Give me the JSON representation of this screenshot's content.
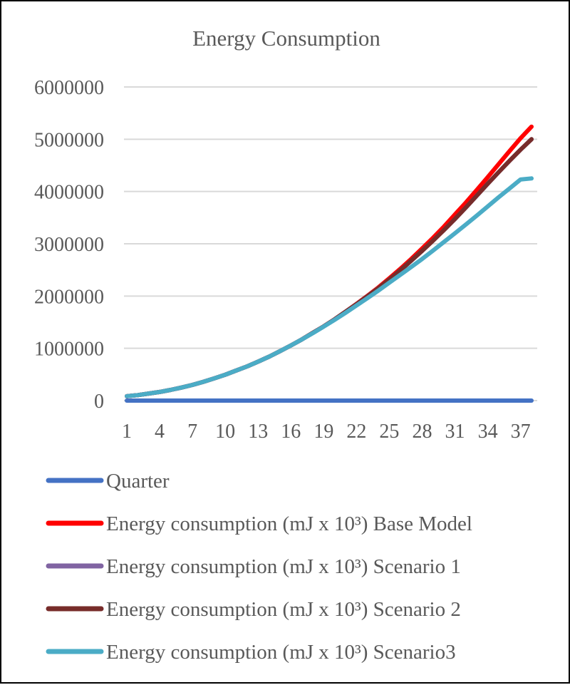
{
  "chart_data": {
    "type": "line",
    "title": "Energy Consumption",
    "xlabel": "",
    "ylabel": "",
    "ylim": [
      0,
      6000000
    ],
    "yticks": [
      0,
      1000000,
      2000000,
      3000000,
      4000000,
      5000000,
      6000000
    ],
    "ytick_labels": [
      "0",
      "1000000",
      "2000000",
      "3000000",
      "4000000",
      "5000000",
      "6000000"
    ],
    "x": [
      1,
      2,
      3,
      4,
      5,
      6,
      7,
      8,
      9,
      10,
      11,
      12,
      13,
      14,
      15,
      16,
      17,
      18,
      19,
      20,
      21,
      22,
      23,
      24,
      25,
      26,
      27,
      28,
      29,
      30,
      31,
      32,
      33,
      34,
      35,
      36,
      37,
      38
    ],
    "xtick_labels": [
      "1",
      "4",
      "7",
      "10",
      "13",
      "16",
      "19",
      "22",
      "25",
      "28",
      "31",
      "34",
      "37"
    ],
    "grid": true,
    "legend": "bottom",
    "series": [
      {
        "name": "Quarter",
        "color": "#4472c4",
        "values": [
          1,
          2,
          3,
          4,
          5,
          6,
          7,
          8,
          9,
          10,
          11,
          12,
          13,
          14,
          15,
          16,
          17,
          18,
          19,
          20,
          21,
          22,
          23,
          24,
          25,
          26,
          27,
          28,
          29,
          30,
          31,
          32,
          33,
          34,
          35,
          36,
          37,
          38
        ]
      },
      {
        "name": "Energy consumption (mJ x 10³) Base Model",
        "color": "#ff0000",
        "values": [
          85000,
          105000,
          135000,
          165000,
          205000,
          250000,
          300000,
          360000,
          425000,
          495000,
          575000,
          655000,
          745000,
          840000,
          945000,
          1055000,
          1170000,
          1295000,
          1420000,
          1555000,
          1700000,
          1850000,
          2005000,
          2165000,
          2340000,
          2520000,
          2710000,
          2910000,
          3115000,
          3330000,
          3560000,
          3790000,
          4030000,
          4275000,
          4525000,
          4775000,
          5020000,
          5240000
        ]
      },
      {
        "name": "Energy consumption (mJ x 10³) Scenario 1",
        "color": "#8064a2",
        "values": [
          85000,
          105000,
          135000,
          165000,
          205000,
          250000,
          300000,
          360000,
          425000,
          495000,
          575000,
          655000,
          745000,
          840000,
          945000,
          1055000,
          1170000,
          1295000,
          1420000,
          1555000,
          1700000,
          1845000,
          1995000,
          2150000,
          2315000,
          2490000,
          2675000,
          2865000,
          3060000,
          3265000,
          3475000,
          3695000,
          3920000,
          4150000,
          4370000,
          4590000,
          4800000,
          5000000
        ]
      },
      {
        "name": "Energy consumption (mJ x 10³) Scenario 2",
        "color": "#772c2a",
        "values": [
          85000,
          105000,
          135000,
          165000,
          205000,
          250000,
          300000,
          360000,
          425000,
          495000,
          575000,
          655000,
          745000,
          840000,
          945000,
          1055000,
          1170000,
          1295000,
          1420000,
          1555000,
          1700000,
          1845000,
          1995000,
          2150000,
          2315000,
          2490000,
          2675000,
          2865000,
          3060000,
          3265000,
          3475000,
          3695000,
          3920000,
          4150000,
          4370000,
          4590000,
          4800000,
          5000000
        ]
      },
      {
        "name": "Energy consumption (mJ x 10³) Scenario3",
        "color": "#4bacc6",
        "values": [
          85000,
          105000,
          135000,
          165000,
          205000,
          250000,
          300000,
          360000,
          425000,
          495000,
          575000,
          655000,
          745000,
          840000,
          945000,
          1055000,
          1170000,
          1290000,
          1415000,
          1545000,
          1680000,
          1820000,
          1960000,
          2105000,
          2255000,
          2405000,
          2555000,
          2710000,
          2870000,
          3035000,
          3200000,
          3370000,
          3540000,
          3715000,
          3890000,
          4060000,
          4230000,
          4250000
        ]
      }
    ]
  }
}
